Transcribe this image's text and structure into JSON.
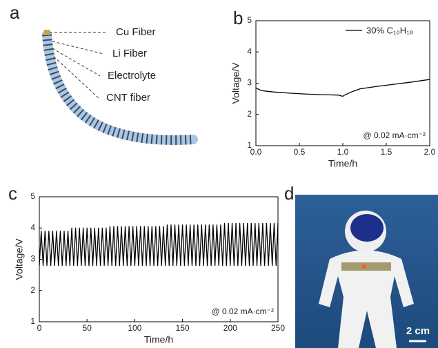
{
  "panel_labels": [
    "a",
    "b",
    "c",
    "d"
  ],
  "diagram": {
    "labels": [
      "Cu Fiber",
      "Li Fiber",
      "Electrolyte",
      "CNT fiber"
    ]
  },
  "photo": {
    "scale_bar": "2 cm"
  },
  "chart_data": [
    {
      "type": "line",
      "xlabel": "Time/h",
      "ylabel": "Voltage/V",
      "annotation": "@ 0.02 mA·cm⁻²",
      "xlim": [
        0,
        2
      ],
      "xticks": [
        {
          "value": 0,
          "label": "0.0"
        },
        0.5,
        {
          "value": 1,
          "label": "1.0"
        },
        1.5,
        {
          "value": 2,
          "label": "2.0"
        }
      ],
      "ylim": [
        1,
        5
      ],
      "yticks": [
        1,
        2,
        3,
        4,
        5
      ],
      "legend": "upper right",
      "x": [
        0,
        0.05,
        0.1,
        0.2,
        0.4,
        0.6,
        0.8,
        0.95,
        1.0,
        1.02,
        1.1,
        1.2,
        1.4,
        1.6,
        1.8,
        2.0
      ],
      "series": [
        {
          "name": "30% C₁₀H₁₈",
          "color": "#000000",
          "values": [
            2.85,
            2.78,
            2.75,
            2.72,
            2.68,
            2.65,
            2.63,
            2.62,
            2.58,
            2.62,
            2.72,
            2.82,
            2.9,
            2.97,
            3.04,
            3.12
          ]
        }
      ]
    },
    {
      "type": "line",
      "xlabel": "Time/h",
      "ylabel": "Voltage/V",
      "annotation": "@ 0.02 mA·cm⁻²",
      "xlim": [
        0,
        250
      ],
      "xticks": [
        0,
        50,
        100,
        150,
        200,
        250
      ],
      "ylim": [
        1,
        5
      ],
      "yticks": [
        1,
        2,
        3,
        4,
        5
      ],
      "x": [
        0,
        2,
        4,
        6,
        8,
        10,
        12,
        14,
        16,
        18,
        20,
        22,
        24,
        26,
        28,
        30,
        32,
        34,
        36,
        38,
        40,
        42,
        44,
        46,
        48,
        50,
        52,
        54,
        56,
        58,
        60,
        62,
        64,
        66,
        68,
        70,
        72,
        74,
        76,
        78,
        80,
        82,
        84,
        86,
        88,
        90,
        92,
        94,
        96,
        98,
        100,
        102,
        104,
        106,
        108,
        110,
        112,
        114,
        116,
        118,
        120,
        122,
        124,
        126,
        128,
        130,
        132,
        134,
        136,
        138,
        140,
        142,
        144,
        146,
        148,
        150,
        152,
        154,
        156,
        158,
        160,
        162,
        164,
        166,
        168,
        170,
        172,
        174,
        176,
        178,
        180,
        182,
        184,
        186,
        188,
        190,
        192,
        194,
        196,
        198,
        200,
        202,
        204,
        206,
        208,
        210,
        212,
        214,
        216,
        218,
        220,
        222,
        224,
        226,
        228,
        230,
        232,
        234,
        236,
        238,
        240,
        242,
        244,
        246,
        248,
        250
      ],
      "series": [
        {
          "color": "#000000",
          "values": [
            2.8,
            3.9,
            2.8,
            3.9,
            2.8,
            3.9,
            2.8,
            3.9,
            2.8,
            3.9,
            2.8,
            3.9,
            2.8,
            3.9,
            2.8,
            3.9,
            2.8,
            4.0,
            2.8,
            4.0,
            2.8,
            4.0,
            2.8,
            4.0,
            2.8,
            4.0,
            2.8,
            4.0,
            2.8,
            4.0,
            2.8,
            4.0,
            2.8,
            4.0,
            2.8,
            4.0,
            2.8,
            4.05,
            2.8,
            4.05,
            2.8,
            4.05,
            2.8,
            4.05,
            2.8,
            4.05,
            2.8,
            4.05,
            2.8,
            4.05,
            2.8,
            4.05,
            2.8,
            4.05,
            2.8,
            4.05,
            2.8,
            4.05,
            2.8,
            4.05,
            2.8,
            4.05,
            2.8,
            4.05,
            2.8,
            4.05,
            2.8,
            4.1,
            2.8,
            4.1,
            2.8,
            4.1,
            2.8,
            4.1,
            2.8,
            4.1,
            2.8,
            4.1,
            2.8,
            4.1,
            2.8,
            4.1,
            2.8,
            4.1,
            2.8,
            4.1,
            2.8,
            4.1,
            2.8,
            4.1,
            2.8,
            4.1,
            2.8,
            4.1,
            2.8,
            4.1,
            2.8,
            4.15,
            2.8,
            4.15,
            2.8,
            4.15,
            2.8,
            4.15,
            2.8,
            4.15,
            2.8,
            4.15,
            2.8,
            4.15,
            2.8,
            4.15,
            2.8,
            4.15,
            2.8,
            4.15,
            2.8,
            4.15,
            2.8,
            4.15,
            2.8,
            4.15,
            2.8,
            4.15,
            2.8,
            4.15
          ]
        }
      ]
    }
  ]
}
